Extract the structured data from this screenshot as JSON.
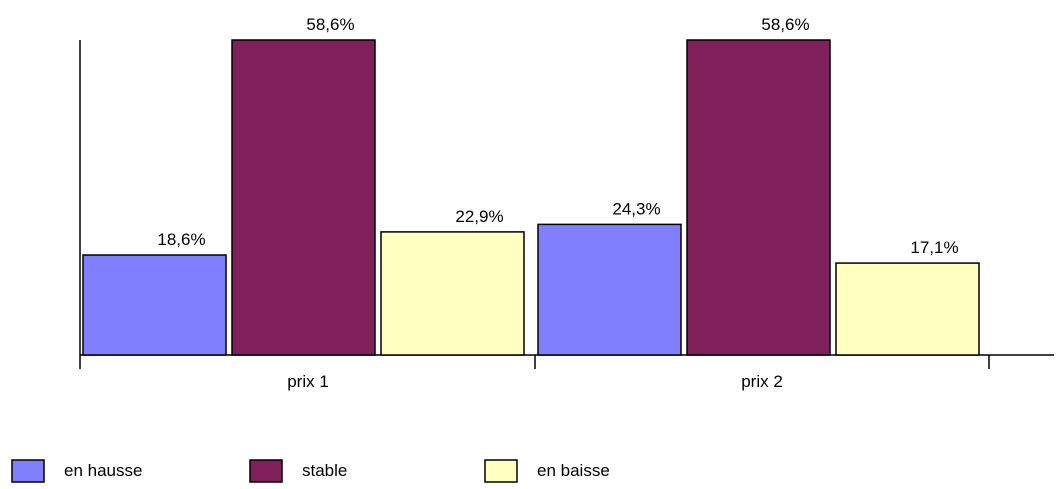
{
  "chart_data": {
    "type": "bar",
    "categories": [
      "prix 1",
      "prix 2"
    ],
    "series": [
      {
        "name": "en hausse",
        "color": "#8080ff",
        "values": [
          18.6,
          24.3
        ],
        "labels": [
          "18,6%",
          "24,3%"
        ]
      },
      {
        "name": "stable",
        "color": "#80205a",
        "values": [
          58.6,
          58.6
        ],
        "labels": [
          "58,6%",
          "58,6%"
        ]
      },
      {
        "name": "en baisse",
        "color": "#ffffc0",
        "values": [
          22.9,
          17.1
        ],
        "labels": [
          "22,9%",
          "17,1%"
        ]
      }
    ],
    "ylim": [
      0,
      58.6
    ],
    "grid": false,
    "legend_position": "bottom"
  }
}
